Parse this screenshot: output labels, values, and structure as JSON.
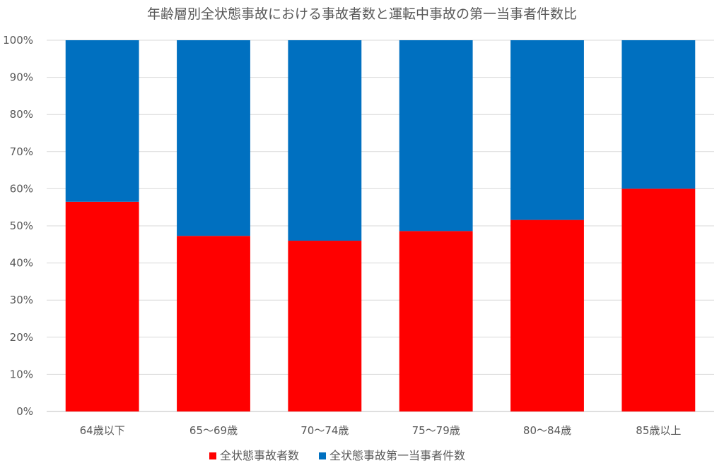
{
  "chart_data": {
    "type": "bar",
    "stacked": true,
    "normalized": true,
    "title": "年齢層別全状態事故における事故者数と運転中事故の第一当事者件数比",
    "xlabel": "",
    "ylabel": "",
    "categories": [
      "64歳以下",
      "65〜69歳",
      "70〜74歳",
      "75〜79歳",
      "80〜84歳",
      "85歳以上"
    ],
    "series": [
      {
        "name": "全状態事故者数",
        "color": "#FF0000",
        "values": [
          56.5,
          47.3,
          46.0,
          48.6,
          51.6,
          60.0
        ]
      },
      {
        "name": "全状態事故第一当事者件数",
        "color": "#0070C0",
        "values": [
          43.5,
          52.7,
          54.0,
          51.4,
          48.4,
          40.0
        ]
      }
    ],
    "yticks": [
      "0%",
      "10%",
      "20%",
      "30%",
      "40%",
      "50%",
      "60%",
      "70%",
      "80%",
      "90%",
      "100%"
    ],
    "ylim": [
      0,
      100
    ],
    "grid": true,
    "legend_position": "bottom"
  }
}
